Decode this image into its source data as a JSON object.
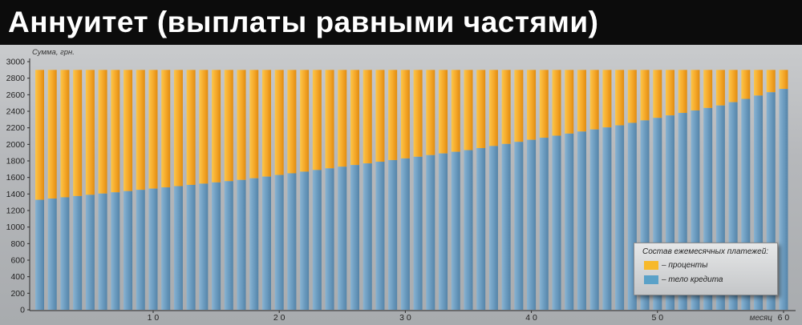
{
  "title": "Аннуитет (выплаты равными частями)",
  "chart_data": {
    "type": "bar",
    "stacked": true,
    "ylabel": "Сумма, грн.",
    "xlabel": "месяц",
    "ylim": [
      0,
      3000
    ],
    "yticks": [
      0,
      200,
      400,
      600,
      800,
      1000,
      1200,
      1400,
      1600,
      1800,
      2000,
      2200,
      2400,
      2600,
      2800,
      3000
    ],
    "xticks": [
      10,
      20,
      30,
      40,
      50,
      60
    ],
    "xtick_labels": [
      "1 0",
      "2 0",
      "3 0",
      "4 0",
      "5 0",
      "6 0"
    ],
    "months": [
      1,
      2,
      3,
      4,
      5,
      6,
      7,
      8,
      9,
      10,
      11,
      12,
      13,
      14,
      15,
      16,
      17,
      18,
      19,
      20,
      21,
      22,
      23,
      24,
      25,
      26,
      27,
      28,
      29,
      30,
      31,
      32,
      33,
      34,
      35,
      36,
      37,
      38,
      39,
      40,
      41,
      42,
      43,
      44,
      45,
      46,
      47,
      48,
      49,
      50,
      51,
      52,
      53,
      54,
      55,
      56,
      57,
      58,
      59,
      60
    ],
    "total_payment": 2900,
    "series": [
      {
        "name": "– тело кредита",
        "color": "#6f9fc2",
        "values": [
          1330,
          1345,
          1360,
          1375,
          1390,
          1405,
          1420,
          1435,
          1450,
          1465,
          1480,
          1495,
          1510,
          1525,
          1540,
          1555,
          1570,
          1590,
          1610,
          1630,
          1650,
          1670,
          1690,
          1710,
          1730,
          1750,
          1770,
          1790,
          1810,
          1830,
          1850,
          1870,
          1890,
          1910,
          1930,
          1955,
          1980,
          2005,
          2030,
          2055,
          2080,
          2105,
          2130,
          2155,
          2180,
          2205,
          2230,
          2260,
          2290,
          2320,
          2350,
          2380,
          2410,
          2440,
          2470,
          2510,
          2550,
          2590,
          2630,
          2670
        ]
      },
      {
        "name": "– проценты",
        "color": "#f5a623",
        "values": [
          1570,
          1555,
          1540,
          1525,
          1510,
          1495,
          1480,
          1465,
          1450,
          1435,
          1420,
          1405,
          1390,
          1375,
          1360,
          1345,
          1330,
          1310,
          1290,
          1270,
          1250,
          1230,
          1210,
          1190,
          1170,
          1150,
          1130,
          1110,
          1090,
          1070,
          1050,
          1030,
          1010,
          990,
          970,
          945,
          920,
          895,
          870,
          845,
          820,
          795,
          770,
          745,
          720,
          695,
          670,
          640,
          610,
          580,
          550,
          520,
          490,
          460,
          430,
          390,
          350,
          310,
          270,
          230
        ]
      }
    ],
    "legend": {
      "title": "Состав ежемесячных платежей:",
      "position": "bottom-right"
    },
    "grid": false
  }
}
